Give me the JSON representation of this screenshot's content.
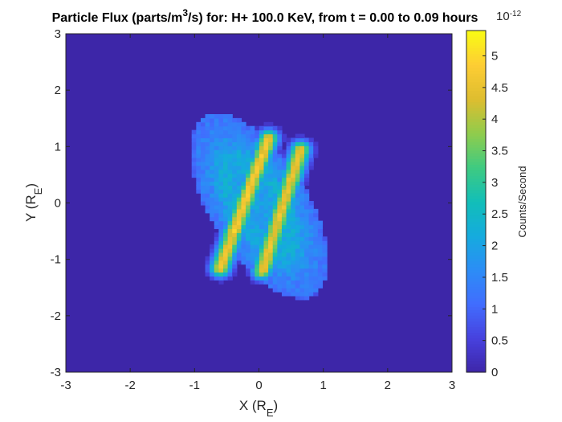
{
  "chart_data": {
    "type": "heatmap",
    "title": "Particle Flux (parts/m³/s) for: H+ 100.0 KeV, from t = 0.00 to 0.09 hours",
    "title_parts": {
      "prefix": "Particle Flux (parts/m",
      "sup": "3",
      "suffix": "/s) for: H+ 100.0 KeV, from t = 0.00 to 0.09 hours"
    },
    "xlabel": {
      "main": "X (R",
      "sub": "E",
      "close": ")"
    },
    "ylabel": {
      "main": "Y (R",
      "sub": "E",
      "close": ")"
    },
    "xlim": [
      -3,
      3
    ],
    "ylim": [
      -3,
      3
    ],
    "x_ticks": [
      -3,
      -2,
      -1,
      0,
      1,
      2,
      3
    ],
    "y_ticks": [
      -3,
      -2,
      -1,
      0,
      1,
      2,
      3
    ],
    "colormap": "parula",
    "colorbar": {
      "label": "Counts/Second",
      "multiplier": "10",
      "exponent": "-12",
      "range": [
        0,
        5.4
      ],
      "ticks": [
        "0",
        "0.5",
        "1",
        "1.5",
        "2",
        "2.5",
        "3",
        "3.5",
        "4",
        "4.5",
        "5"
      ]
    },
    "background_value": 0.3,
    "grid": false,
    "structure": {
      "halo": {
        "center": [
          0,
          -0.05
        ],
        "semi_axes": [
          0.78,
          1.8
        ],
        "tilt_deg": 27,
        "peak": 2.0
      },
      "bars": [
        {
          "from": [
            0.15,
            1.15
          ],
          "to": [
            -0.6,
            -1.15
          ],
          "peak": 4.7
        },
        {
          "from": [
            0.65,
            0.95
          ],
          "to": [
            0.05,
            -1.2
          ],
          "peak": 4.6
        }
      ]
    }
  }
}
